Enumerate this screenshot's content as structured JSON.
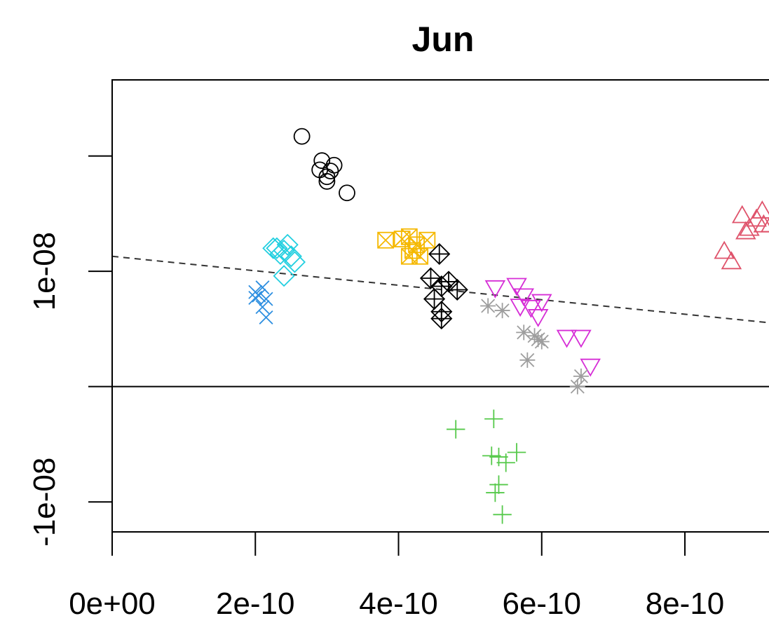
{
  "chart_data": {
    "type": "scatter",
    "title": "Jun",
    "xlabel": "",
    "ylabel": "",
    "xlim": [
      0,
      9.4e-10
    ],
    "ylim": [
      -1.26e-08,
      2.66e-08
    ],
    "x_ticks": [
      0,
      2e-10,
      4e-10,
      6e-10,
      8e-10
    ],
    "x_tick_labels": [
      "0e+00",
      "2e-10",
      "4e-10",
      "6e-10",
      "8e-10"
    ],
    "y_ticks": [
      -1e-08,
      0,
      1e-08,
      2e-08
    ],
    "y_tick_labels": [
      "-1e-08",
      "",
      "1e-08",
      ""
    ],
    "grid": false,
    "legend": "none",
    "reference_lines": [
      {
        "kind": "horizontal",
        "y": 0,
        "style": "solid",
        "color": "#000000"
      },
      {
        "kind": "line",
        "style": "dashed",
        "color": "#333333",
        "points": [
          [
            0,
            1.13e-08
          ],
          [
            9.4e-10,
            5.4e-09
          ]
        ]
      }
    ],
    "series": [
      {
        "marker": "circle",
        "color": "#000000",
        "points": [
          [
            2.65e-10,
            2.17e-08
          ],
          [
            2.93e-10,
            1.96e-08
          ],
          [
            2.9e-10,
            1.88e-08
          ],
          [
            3.05e-10,
            1.87e-08
          ],
          [
            3.1e-10,
            1.92e-08
          ],
          [
            3e-10,
            1.82e-08
          ],
          [
            3e-10,
            1.78e-08
          ],
          [
            3.28e-10,
            1.68e-08
          ]
        ]
      },
      {
        "marker": "diamond",
        "color": "#22CFE0",
        "points": [
          [
            2.25e-10,
            1.2e-08
          ],
          [
            2.35e-10,
            1.15e-08
          ],
          [
            2.45e-10,
            1.23e-08
          ],
          [
            2.5e-10,
            1.13e-08
          ],
          [
            2.55e-10,
            1.08e-08
          ],
          [
            2.4e-10,
            1.18e-08
          ],
          [
            2.3e-10,
            1.2e-08
          ],
          [
            2.4e-10,
            9.6e-09
          ]
        ]
      },
      {
        "marker": "x",
        "color": "#2E8FE0",
        "points": [
          [
            2e-10,
            8.2e-09
          ],
          [
            2.05e-10,
            7.9e-09
          ],
          [
            2.1e-10,
            8.6e-09
          ],
          [
            2.15e-10,
            7.6e-09
          ],
          [
            2e-10,
            7.7e-09
          ],
          [
            2.1e-10,
            6.9e-09
          ],
          [
            2.15e-10,
            6e-09
          ]
        ]
      },
      {
        "marker": "square-x",
        "color": "#F5B800",
        "points": [
          [
            3.82e-10,
            1.27e-08
          ],
          [
            4.05e-10,
            1.28e-08
          ],
          [
            4.15e-10,
            1.3e-08
          ],
          [
            4.2e-10,
            1.18e-08
          ],
          [
            4.25e-10,
            1.23e-08
          ],
          [
            4.3e-10,
            1.13e-08
          ],
          [
            4.15e-10,
            1.13e-08
          ],
          [
            4.4e-10,
            1.27e-08
          ]
        ]
      },
      {
        "marker": "diamond-plus",
        "color": "#000000",
        "points": [
          [
            4.57e-10,
            1.15e-08
          ],
          [
            4.45e-10,
            9.4e-09
          ],
          [
            4.6e-10,
            8.7e-09
          ],
          [
            4.7e-10,
            9.1e-09
          ],
          [
            4.82e-10,
            8.4e-09
          ],
          [
            4.5e-10,
            7.6e-09
          ],
          [
            4.6e-10,
            6.5e-09
          ],
          [
            4.6e-10,
            5.9e-09
          ]
        ]
      },
      {
        "marker": "triangle-down",
        "color": "#D62DD6",
        "points": [
          [
            5.35e-10,
            8.6e-09
          ],
          [
            5.65e-10,
            8.8e-09
          ],
          [
            5.75e-10,
            7.9e-09
          ],
          [
            5.85e-10,
            6.9e-09
          ],
          [
            6e-10,
            7.4e-09
          ],
          [
            5.7e-10,
            7e-09
          ],
          [
            5.95e-10,
            6.1e-09
          ],
          [
            6.35e-10,
            4.3e-09
          ],
          [
            6.55e-10,
            4.3e-09
          ],
          [
            6.68e-10,
            1.8e-09
          ]
        ]
      },
      {
        "marker": "asterisk",
        "color": "#9E9E9E",
        "points": [
          [
            5.25e-10,
            7e-09
          ],
          [
            5.45e-10,
            6.6e-09
          ],
          [
            5.75e-10,
            4.7e-09
          ],
          [
            5.95e-10,
            4.1e-09
          ],
          [
            6e-10,
            3.9e-09
          ],
          [
            5.9e-10,
            4.4e-09
          ],
          [
            5.8e-10,
            2.3e-09
          ],
          [
            6.55e-10,
            9e-10
          ],
          [
            6.5e-10,
            0
          ]
        ]
      },
      {
        "marker": "plus",
        "color": "#55C94A",
        "points": [
          [
            4.8e-10,
            -3.7e-09
          ],
          [
            5.33e-10,
            -2.8e-09
          ],
          [
            5.3e-10,
            -6e-09
          ],
          [
            5.4e-10,
            -6.1e-09
          ],
          [
            5.5e-10,
            -6.6e-09
          ],
          [
            5.65e-10,
            -5.7e-09
          ],
          [
            5.4e-10,
            -8.5e-09
          ],
          [
            5.35e-10,
            -9.2e-09
          ],
          [
            5.45e-10,
            -1.11e-08
          ]
        ]
      },
      {
        "marker": "triangle",
        "color": "#DF536B",
        "points": [
          [
            8.55e-10,
            1.17e-08
          ],
          [
            8.65e-10,
            1.08e-08
          ],
          [
            8.8e-10,
            1.48e-08
          ],
          [
            8.9e-10,
            1.37e-08
          ],
          [
            9e-10,
            1.45e-08
          ],
          [
            9.08e-10,
            1.52e-08
          ],
          [
            9.1e-10,
            1.4e-08
          ],
          [
            9.2e-10,
            1.4e-08
          ],
          [
            8.85e-10,
            1.34e-08
          ]
        ]
      }
    ]
  }
}
